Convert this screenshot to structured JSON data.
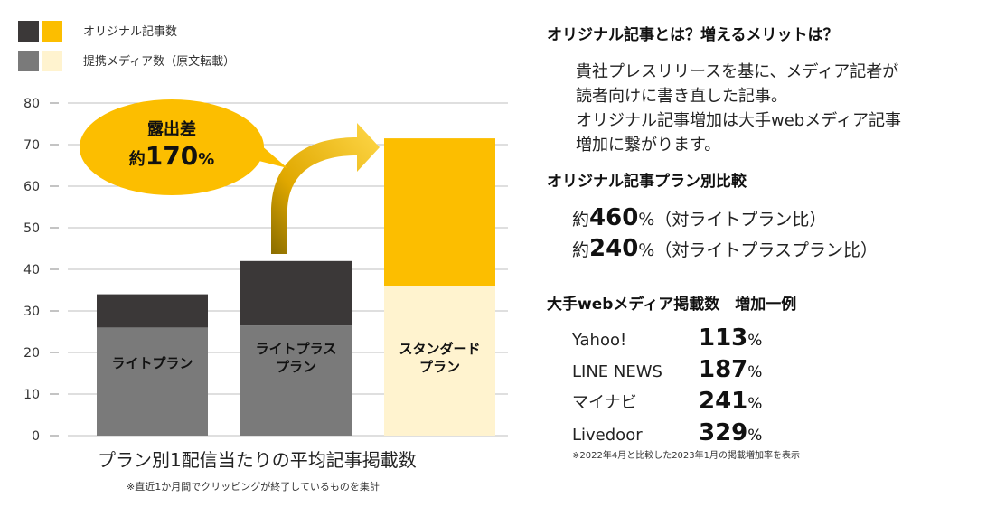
{
  "chart_data": {
    "type": "bar",
    "stacked": true,
    "title": "プラン別1配信当たりの平均記事掲載数",
    "note": "※直近1か月間でクリッピングが終了しているものを集計",
    "ylim": [
      0,
      80
    ],
    "yticks": [
      "0",
      "10",
      "20",
      "30",
      "40",
      "50",
      "60",
      "70",
      "80"
    ],
    "categories": [
      {
        "lines": [
          "ライトプラン"
        ]
      },
      {
        "lines": [
          "ライトプラス",
          "プラン"
        ]
      },
      {
        "lines": [
          "スタンダード",
          "プラン"
        ]
      }
    ],
    "series": [
      {
        "name": "提携メディア数（原文転載）",
        "values": [
          26,
          26.5,
          36
        ]
      },
      {
        "name": "オリジナル記事数",
        "values": [
          8,
          15.5,
          35.5
        ]
      }
    ],
    "colors": {
      "partner": [
        "#7a7a7a",
        "#7a7a7a",
        "#fff3cf"
      ],
      "original": [
        "#3b3838",
        "#3b3838",
        "#fcbe00"
      ]
    },
    "legend": [
      {
        "label": "オリジナル記事数",
        "swatches": [
          "#3b3838",
          "#fcbe00"
        ]
      },
      {
        "label": "提携メディア数（原文転載）",
        "swatches": [
          "#7a7a7a",
          "#fff3cf"
        ]
      }
    ],
    "legend_position": "top-left",
    "annotation": {
      "line1": "露出差",
      "prefix": "約",
      "value": "170",
      "unit": "%"
    }
  },
  "info": {
    "heading1": "オリジナル記事とは？増えるメリットは？",
    "para": [
      "貴社プレスリリースを基に、メディア記者が",
      "読者向けに書き直した記事。",
      "オリジナル記事増加は大手webメディア記事",
      "増加に繋がります。"
    ],
    "heading2": "オリジナル記事プラン別比較",
    "comparisons": [
      {
        "prefix": "約",
        "value": "460",
        "suffix": "%（対ライトプラン比）"
      },
      {
        "prefix": "約",
        "value": "240",
        "suffix": "%（対ライトプラスプラン比）"
      }
    ],
    "heading3": "大手webメディア掲載数　増加一例",
    "media": [
      {
        "name": "Yahoo!",
        "value": "113",
        "unit": "%"
      },
      {
        "name": "LINE NEWS",
        "value": "187",
        "unit": "%"
      },
      {
        "name": "マイナビ",
        "value": "241",
        "unit": "%"
      },
      {
        "name": "Livedoor",
        "value": "329",
        "unit": "%"
      }
    ],
    "footnote": "※2022年4月と比較した2023年1月の掲載増加率を表示"
  }
}
